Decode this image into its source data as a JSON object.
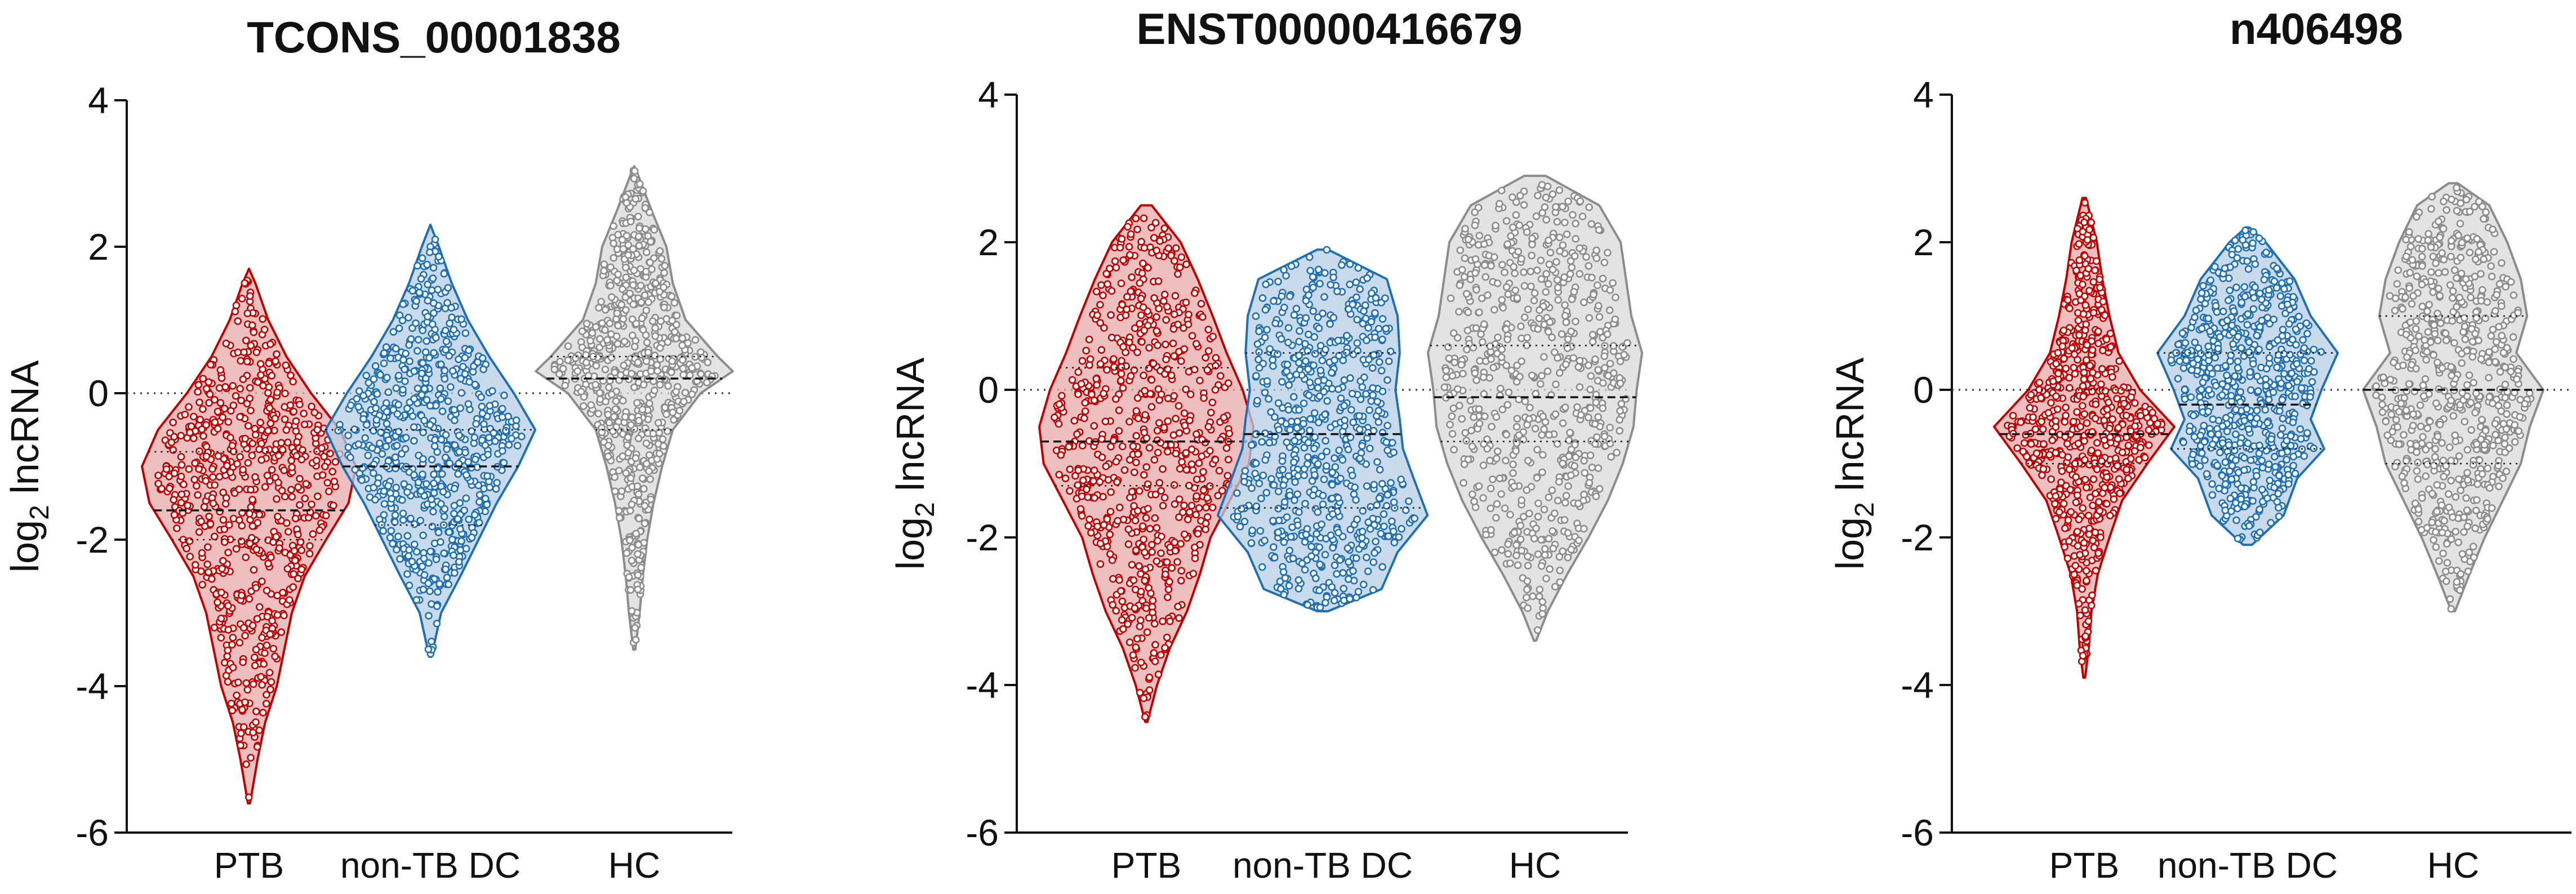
{
  "chart_data": [
    {
      "type": "violin",
      "title": "TCONS_00001838",
      "ylabel": "log2 lncRNA",
      "ylabel_main": "log",
      "ylabel_sub": "2",
      "ylabel_rest": " lncRNA",
      "ylim": [
        -6,
        4
      ],
      "yticks": [
        -6,
        -4,
        -2,
        0,
        2,
        4
      ],
      "reference_line": 0,
      "categories": [
        "PTB",
        "non-TB DC",
        "HC"
      ],
      "colors": {
        "PTB": "#c00000",
        "non-TB DC": "#1f6fb4",
        "HC": "#8c8c8c"
      },
      "fills": {
        "PTB": "#e8a9a9",
        "non-TB DC": "#b7cde6",
        "HC": "#d9d9d9"
      },
      "series": [
        {
          "category": "PTB",
          "min": -5.6,
          "max": 1.7,
          "q1": -2.0,
          "median": -1.6,
          "q3": -0.8,
          "shape": [
            [
              -5.6,
              0.01
            ],
            [
              -5.0,
              0.08
            ],
            [
              -4.5,
              0.15
            ],
            [
              -4.0,
              0.26
            ],
            [
              -3.5,
              0.33
            ],
            [
              -3.0,
              0.4
            ],
            [
              -2.5,
              0.52
            ],
            [
              -2.0,
              0.72
            ],
            [
              -1.5,
              0.93
            ],
            [
              -1.0,
              1.0
            ],
            [
              -0.5,
              0.85
            ],
            [
              0.0,
              0.58
            ],
            [
              0.5,
              0.35
            ],
            [
              1.0,
              0.18
            ],
            [
              1.5,
              0.06
            ],
            [
              1.7,
              0.0
            ]
          ]
        },
        {
          "category": "non-TB DC",
          "min": -3.6,
          "max": 2.3,
          "q1": -1.8,
          "median": -1.0,
          "q3": -0.5,
          "shape": [
            [
              -3.6,
              0.01
            ],
            [
              -3.0,
              0.1
            ],
            [
              -2.5,
              0.28
            ],
            [
              -2.0,
              0.45
            ],
            [
              -1.5,
              0.62
            ],
            [
              -1.0,
              0.82
            ],
            [
              -0.5,
              0.98
            ],
            [
              0.0,
              0.78
            ],
            [
              0.5,
              0.55
            ],
            [
              1.0,
              0.35
            ],
            [
              1.5,
              0.2
            ],
            [
              2.0,
              0.08
            ],
            [
              2.3,
              0.0
            ]
          ]
        },
        {
          "category": "HC",
          "min": -3.5,
          "max": 3.1,
          "q1": -0.5,
          "median": 0.2,
          "q3": 0.5,
          "shape": [
            [
              -3.5,
              0.01
            ],
            [
              -3.0,
              0.05
            ],
            [
              -2.5,
              0.08
            ],
            [
              -2.0,
              0.12
            ],
            [
              -1.5,
              0.18
            ],
            [
              -1.0,
              0.26
            ],
            [
              -0.5,
              0.36
            ],
            [
              0.0,
              0.62
            ],
            [
              0.3,
              0.92
            ],
            [
              0.5,
              0.78
            ],
            [
              1.0,
              0.48
            ],
            [
              1.5,
              0.36
            ],
            [
              2.0,
              0.3
            ],
            [
              2.5,
              0.16
            ],
            [
              3.0,
              0.03
            ],
            [
              3.1,
              0.0
            ]
          ]
        }
      ]
    },
    {
      "type": "violin",
      "title": "ENST00000416679",
      "ylabel": "log2 lncRNA",
      "ylabel_main": "log",
      "ylabel_sub": "2",
      "ylabel_rest": " lncRNA",
      "ylim": [
        -6,
        4
      ],
      "yticks": [
        -6,
        -4,
        -2,
        0,
        2,
        4
      ],
      "reference_line": 0,
      "categories": [
        "PTB",
        "non-TB DC",
        "HC"
      ],
      "colors": {
        "PTB": "#c00000",
        "non-TB DC": "#1f6fb4",
        "HC": "#8c8c8c"
      },
      "fills": {
        "PTB": "#e8a9a9",
        "non-TB DC": "#b7cde6",
        "HC": "#d9d9d9"
      },
      "series": [
        {
          "category": "PTB",
          "min": -4.5,
          "max": 2.5,
          "q1": -1.3,
          "median": -0.7,
          "q3": 0.3,
          "shape": [
            [
              -4.5,
              0.01
            ],
            [
              -4.0,
              0.1
            ],
            [
              -3.5,
              0.22
            ],
            [
              -3.0,
              0.38
            ],
            [
              -2.5,
              0.5
            ],
            [
              -2.0,
              0.6
            ],
            [
              -1.5,
              0.78
            ],
            [
              -1.0,
              0.96
            ],
            [
              -0.5,
              1.0
            ],
            [
              0.0,
              0.9
            ],
            [
              0.5,
              0.75
            ],
            [
              1.0,
              0.62
            ],
            [
              1.5,
              0.48
            ],
            [
              2.0,
              0.32
            ],
            [
              2.5,
              0.05
            ]
          ]
        },
        {
          "category": "non-TB DC",
          "min": -3.0,
          "max": 1.9,
          "q1": -1.6,
          "median": -0.6,
          "q3": 0.5,
          "shape": [
            [
              -3.0,
              0.05
            ],
            [
              -2.7,
              0.55
            ],
            [
              -2.2,
              0.7
            ],
            [
              -1.7,
              0.98
            ],
            [
              -1.2,
              0.85
            ],
            [
              -0.8,
              0.75
            ],
            [
              -0.4,
              0.72
            ],
            [
              0.0,
              0.68
            ],
            [
              0.5,
              0.72
            ],
            [
              1.0,
              0.7
            ],
            [
              1.5,
              0.6
            ],
            [
              1.9,
              0.05
            ]
          ]
        },
        {
          "category": "HC",
          "min": -3.4,
          "max": 2.9,
          "q1": -0.7,
          "median": -0.1,
          "q3": 0.6,
          "shape": [
            [
              -3.4,
              0.01
            ],
            [
              -3.0,
              0.12
            ],
            [
              -2.5,
              0.3
            ],
            [
              -2.0,
              0.5
            ],
            [
              -1.5,
              0.68
            ],
            [
              -1.0,
              0.82
            ],
            [
              -0.5,
              0.92
            ],
            [
              0.0,
              0.95
            ],
            [
              0.5,
              1.0
            ],
            [
              1.0,
              0.9
            ],
            [
              1.5,
              0.85
            ],
            [
              2.0,
              0.8
            ],
            [
              2.5,
              0.6
            ],
            [
              2.9,
              0.1
            ]
          ]
        }
      ]
    },
    {
      "type": "violin",
      "title": "n406498",
      "ylabel": "log2 lncRNA",
      "ylabel_main": "log",
      "ylabel_sub": "2",
      "ylabel_rest": " lncRNA",
      "ylim": [
        -6,
        4
      ],
      "yticks": [
        -6,
        -4,
        -2,
        0,
        2,
        4
      ],
      "reference_line": 0,
      "categories": [
        "PTB",
        "non-TB DC",
        "HC"
      ],
      "colors": {
        "PTB": "#c00000",
        "non-TB DC": "#1f6fb4",
        "HC": "#8c8c8c"
      },
      "fills": {
        "PTB": "#e8a9a9",
        "non-TB DC": "#b7cde6",
        "HC": "#d9d9d9"
      },
      "series": [
        {
          "category": "PTB",
          "min": -3.9,
          "max": 2.6,
          "q1": -1.0,
          "median": -0.6,
          "q3": 0.0,
          "shape": [
            [
              -3.9,
              0.01
            ],
            [
              -3.5,
              0.05
            ],
            [
              -3.0,
              0.08
            ],
            [
              -2.5,
              0.15
            ],
            [
              -2.0,
              0.28
            ],
            [
              -1.5,
              0.42
            ],
            [
              -1.0,
              0.7
            ],
            [
              -0.5,
              1.0
            ],
            [
              0.0,
              0.62
            ],
            [
              0.5,
              0.38
            ],
            [
              1.0,
              0.28
            ],
            [
              1.5,
              0.2
            ],
            [
              2.0,
              0.14
            ],
            [
              2.6,
              0.02
            ]
          ]
        },
        {
          "category": "non-TB DC",
          "min": -2.1,
          "max": 2.2,
          "q1": -0.8,
          "median": -0.2,
          "q3": 0.5,
          "shape": [
            [
              -2.1,
              0.05
            ],
            [
              -1.7,
              0.4
            ],
            [
              -1.2,
              0.55
            ],
            [
              -0.8,
              0.85
            ],
            [
              -0.4,
              0.7
            ],
            [
              0.0,
              0.82
            ],
            [
              0.5,
              1.0
            ],
            [
              1.0,
              0.7
            ],
            [
              1.5,
              0.52
            ],
            [
              2.0,
              0.2
            ],
            [
              2.2,
              0.02
            ]
          ]
        },
        {
          "category": "HC",
          "min": -3.0,
          "max": 2.8,
          "q1": -1.0,
          "median": 0.0,
          "q3": 1.0,
          "shape": [
            [
              -3.0,
              0.02
            ],
            [
              -2.5,
              0.18
            ],
            [
              -2.0,
              0.35
            ],
            [
              -1.5,
              0.55
            ],
            [
              -1.0,
              0.75
            ],
            [
              -0.5,
              0.85
            ],
            [
              0.0,
              1.0
            ],
            [
              0.5,
              0.7
            ],
            [
              1.0,
              0.82
            ],
            [
              1.5,
              0.75
            ],
            [
              2.0,
              0.6
            ],
            [
              2.5,
              0.4
            ],
            [
              2.8,
              0.05
            ]
          ]
        }
      ]
    }
  ]
}
